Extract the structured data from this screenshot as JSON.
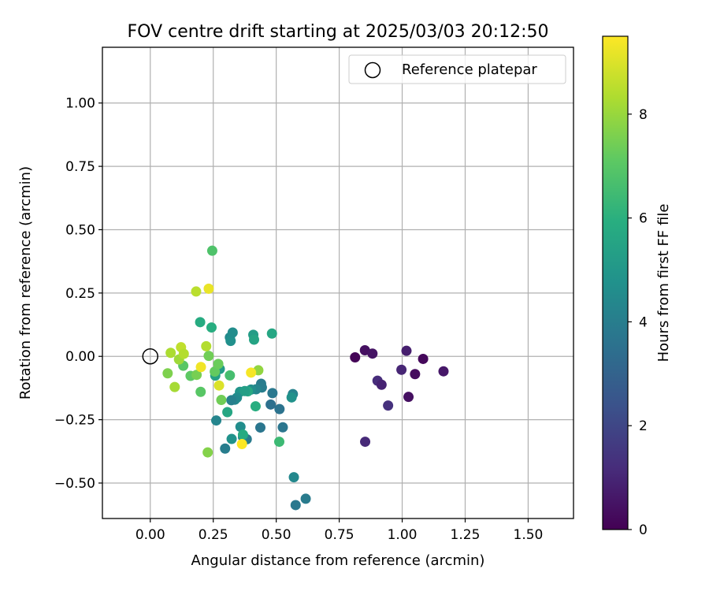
{
  "chart_data": {
    "type": "scatter",
    "title": "FOV centre drift starting at 2025/03/03 20:12:50",
    "xlabel": "Angular distance from reference (arcmin)",
    "ylabel": "Rotation from reference (arcmin)",
    "xlim": [
      -0.19,
      1.68
    ],
    "ylim": [
      -0.64,
      1.22
    ],
    "xticks": [
      0.0,
      0.25,
      0.5,
      0.75,
      1.0,
      1.25,
      1.5
    ],
    "xtick_labels": [
      "0.00",
      "0.25",
      "0.50",
      "0.75",
      "1.00",
      "1.25",
      "1.50"
    ],
    "yticks": [
      -0.5,
      -0.25,
      0.0,
      0.25,
      0.5,
      0.75,
      1.0
    ],
    "ytick_labels": [
      "−0.50",
      "−0.25",
      "0.00",
      "0.25",
      "0.50",
      "0.75",
      "1.00"
    ],
    "grid": true,
    "legend": {
      "placement": "top-right",
      "entries": [
        "Reference platepar"
      ]
    },
    "reference_point": {
      "x": 0.0,
      "y": 0.0
    },
    "colorbar": {
      "label": "Hours from first FF file",
      "colormap": "viridis",
      "range": [
        0,
        9.5
      ],
      "ticks": [
        0,
        2,
        4,
        6,
        8
      ],
      "tick_labels": [
        "0",
        "2",
        "4",
        "6",
        "8"
      ]
    },
    "points": [
      {
        "x": 0.813,
        "y": -0.004,
        "hours": 0.1
      },
      {
        "x": 0.852,
        "y": 0.024,
        "hours": 0.4
      },
      {
        "x": 0.882,
        "y": 0.011,
        "hours": 0.5
      },
      {
        "x": 1.017,
        "y": 0.022,
        "hours": 0.8
      },
      {
        "x": 1.083,
        "y": -0.01,
        "hours": 0.2
      },
      {
        "x": 1.164,
        "y": -0.059,
        "hours": 0.6
      },
      {
        "x": 0.997,
        "y": -0.053,
        "hours": 1.0
      },
      {
        "x": 1.051,
        "y": -0.07,
        "hours": 0.3
      },
      {
        "x": 1.025,
        "y": -0.16,
        "hours": 0.4
      },
      {
        "x": 0.902,
        "y": -0.096,
        "hours": 1.2
      },
      {
        "x": 0.918,
        "y": -0.112,
        "hours": 0.9
      },
      {
        "x": 0.944,
        "y": -0.194,
        "hours": 1.3
      },
      {
        "x": 0.853,
        "y": -0.337,
        "hours": 1.1
      },
      {
        "x": 0.577,
        "y": -0.587,
        "hours": 3.8
      },
      {
        "x": 0.617,
        "y": -0.562,
        "hours": 3.9
      },
      {
        "x": 0.57,
        "y": -0.477,
        "hours": 4.4
      },
      {
        "x": 0.513,
        "y": -0.208,
        "hours": 3.6
      },
      {
        "x": 0.526,
        "y": -0.28,
        "hours": 3.7
      },
      {
        "x": 0.485,
        "y": -0.145,
        "hours": 3.8
      },
      {
        "x": 0.478,
        "y": -0.19,
        "hours": 3.5
      },
      {
        "x": 0.566,
        "y": -0.149,
        "hours": 4.2
      },
      {
        "x": 0.561,
        "y": -0.162,
        "hours": 4.8
      },
      {
        "x": 0.44,
        "y": -0.108,
        "hours": 3.9
      },
      {
        "x": 0.443,
        "y": -0.123,
        "hours": 4.0
      },
      {
        "x": 0.437,
        "y": -0.281,
        "hours": 3.7
      },
      {
        "x": 0.42,
        "y": -0.13,
        "hours": 4.3
      },
      {
        "x": 0.4,
        "y": -0.131,
        "hours": 4.6
      },
      {
        "x": 0.383,
        "y": -0.327,
        "hours": 3.9
      },
      {
        "x": 0.368,
        "y": -0.318,
        "hours": 4.2
      },
      {
        "x": 0.358,
        "y": -0.278,
        "hours": 4.6
      },
      {
        "x": 0.356,
        "y": -0.14,
        "hours": 4.9
      },
      {
        "x": 0.344,
        "y": -0.163,
        "hours": 4.6
      },
      {
        "x": 0.336,
        "y": -0.171,
        "hours": 4.4
      },
      {
        "x": 0.322,
        "y": -0.173,
        "hours": 4.1
      },
      {
        "x": 0.323,
        "y": -0.326,
        "hours": 4.8
      },
      {
        "x": 0.297,
        "y": -0.364,
        "hours": 4.0
      },
      {
        "x": 0.262,
        "y": -0.253,
        "hours": 4.3
      },
      {
        "x": 0.316,
        "y": 0.075,
        "hours": 4.5
      },
      {
        "x": 0.319,
        "y": 0.061,
        "hours": 4.7
      },
      {
        "x": 0.327,
        "y": 0.094,
        "hours": 4.6
      },
      {
        "x": 0.409,
        "y": 0.085,
        "hours": 5.2
      },
      {
        "x": 0.412,
        "y": 0.066,
        "hours": 5.5
      },
      {
        "x": 0.483,
        "y": 0.09,
        "hours": 5.6
      },
      {
        "x": 0.387,
        "y": -0.138,
        "hours": 5.7
      },
      {
        "x": 0.375,
        "y": -0.137,
        "hours": 5.3
      },
      {
        "x": 0.418,
        "y": -0.197,
        "hours": 5.9
      },
      {
        "x": 0.306,
        "y": -0.22,
        "hours": 5.6
      },
      {
        "x": 0.368,
        "y": -0.309,
        "hours": 5.8
      },
      {
        "x": 0.512,
        "y": -0.337,
        "hours": 6.4
      },
      {
        "x": 0.198,
        "y": 0.135,
        "hours": 5.8
      },
      {
        "x": 0.243,
        "y": 0.114,
        "hours": 5.9
      },
      {
        "x": 0.258,
        "y": -0.076,
        "hours": 5.4
      },
      {
        "x": 0.276,
        "y": -0.05,
        "hours": 5.2
      },
      {
        "x": 0.316,
        "y": -0.075,
        "hours": 6.6
      },
      {
        "x": 0.246,
        "y": 0.417,
        "hours": 6.8
      },
      {
        "x": 0.2,
        "y": -0.14,
        "hours": 7.0
      },
      {
        "x": 0.256,
        "y": -0.06,
        "hours": 7.2
      },
      {
        "x": 0.27,
        "y": -0.03,
        "hours": 7.3
      },
      {
        "x": 0.232,
        "y": 0.002,
        "hours": 7.4
      },
      {
        "x": 0.16,
        "y": -0.077,
        "hours": 7.1
      },
      {
        "x": 0.184,
        "y": -0.073,
        "hours": 7.5
      },
      {
        "x": 0.131,
        "y": -0.037,
        "hours": 7.0
      },
      {
        "x": 0.069,
        "y": -0.067,
        "hours": 7.6
      },
      {
        "x": 0.282,
        "y": -0.172,
        "hours": 7.4
      },
      {
        "x": 0.429,
        "y": -0.055,
        "hours": 7.9
      },
      {
        "x": 0.228,
        "y": -0.379,
        "hours": 7.7
      },
      {
        "x": 0.081,
        "y": 0.014,
        "hours": 8.3
      },
      {
        "x": 0.114,
        "y": -0.012,
        "hours": 8.1
      },
      {
        "x": 0.122,
        "y": 0.036,
        "hours": 8.6
      },
      {
        "x": 0.133,
        "y": 0.01,
        "hours": 8.4
      },
      {
        "x": 0.097,
        "y": -0.121,
        "hours": 8.2
      },
      {
        "x": 0.182,
        "y": 0.256,
        "hours": 8.5
      },
      {
        "x": 0.222,
        "y": 0.04,
        "hours": 8.4
      },
      {
        "x": 0.273,
        "y": -0.115,
        "hours": 9.0
      },
      {
        "x": 0.232,
        "y": 0.267,
        "hours": 9.2
      },
      {
        "x": 0.201,
        "y": -0.042,
        "hours": 9.3
      },
      {
        "x": 0.4,
        "y": -0.064,
        "hours": 9.4
      },
      {
        "x": 0.364,
        "y": -0.346,
        "hours": 9.5
      }
    ]
  }
}
